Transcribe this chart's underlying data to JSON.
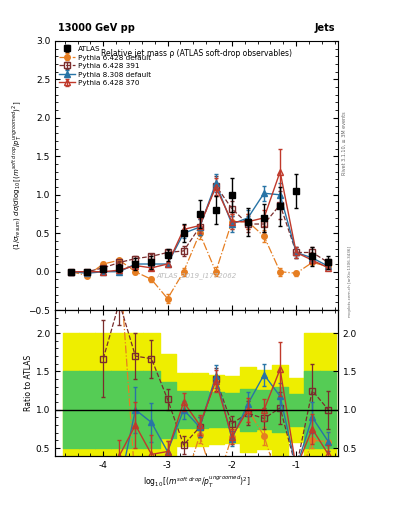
{
  "title_top": "13000 GeV pp",
  "title_right": "Jets",
  "plot_title": "Relative jet mass ρ (ATLAS soft-drop observables)",
  "watermark": "ATLAS_2019_I1772062",
  "right_label_top": "Rivet 3.1.10, ≥ 3M events",
  "right_label_bot": "mcplots.cern.ch [arXiv:1306.3436]",
  "ylabel_ratio": "Ratio to ATLAS",
  "ylim_main": [
    -0.5,
    3.0
  ],
  "ylim_ratio": [
    0.4,
    2.3
  ],
  "xlim": [
    -4.75,
    -0.35
  ],
  "xticks": [
    -4,
    -3,
    -2,
    -1
  ],
  "x_centers": [
    -4.5,
    -4.25,
    -4.0,
    -3.75,
    -3.5,
    -3.25,
    -3.0,
    -2.75,
    -2.5,
    -2.25,
    -2.0,
    -1.75,
    -1.5,
    -1.25,
    -1.0,
    -0.75,
    -0.5
  ],
  "ATLAS_y": [
    0.0,
    0.0,
    0.03,
    0.05,
    0.1,
    0.12,
    0.22,
    0.5,
    0.75,
    0.8,
    1.0,
    0.65,
    0.7,
    0.85,
    1.05,
    0.2,
    0.12
  ],
  "ATLAS_yerr": [
    0.02,
    0.02,
    0.04,
    0.05,
    0.08,
    0.08,
    0.08,
    0.12,
    0.18,
    0.18,
    0.22,
    0.18,
    0.18,
    0.25,
    0.22,
    0.12,
    0.08
  ],
  "p6370_y": [
    0.0,
    0.0,
    0.0,
    0.02,
    0.08,
    0.05,
    0.1,
    0.55,
    0.6,
    1.1,
    0.65,
    0.65,
    0.7,
    1.3,
    0.25,
    0.15,
    0.05
  ],
  "p6370_yerr": [
    0.005,
    0.005,
    0.01,
    0.01,
    0.03,
    0.03,
    0.03,
    0.06,
    0.1,
    0.12,
    0.1,
    0.1,
    0.1,
    0.3,
    0.07,
    0.04,
    0.015
  ],
  "p6391_y": [
    0.0,
    0.0,
    0.05,
    0.12,
    0.17,
    0.2,
    0.25,
    0.27,
    0.58,
    1.12,
    0.82,
    0.62,
    0.62,
    0.87,
    0.25,
    0.25,
    0.12
  ],
  "p6391_yerr": [
    0.005,
    0.005,
    0.015,
    0.015,
    0.03,
    0.03,
    0.03,
    0.06,
    0.1,
    0.12,
    0.1,
    0.1,
    0.1,
    0.18,
    0.07,
    0.07,
    0.03
  ],
  "p6def_y": [
    0.0,
    -0.05,
    0.1,
    0.15,
    0.0,
    -0.1,
    -0.35,
    0.0,
    0.5,
    0.0,
    0.65,
    0.65,
    0.46,
    0.0,
    -0.02,
    0.12,
    0.07
  ],
  "p6def_yerr": [
    0.005,
    0.015,
    0.02,
    0.02,
    0.03,
    0.03,
    0.06,
    0.05,
    0.08,
    0.06,
    0.1,
    0.1,
    0.08,
    0.05,
    0.03,
    0.02,
    0.015
  ],
  "p8def_y": [
    0.0,
    -0.02,
    0.0,
    0.0,
    0.1,
    0.1,
    0.1,
    0.5,
    0.58,
    1.15,
    0.62,
    0.7,
    1.02,
    1.0,
    0.25,
    0.18,
    0.07
  ],
  "p8def_yerr": [
    0.005,
    0.008,
    0.01,
    0.01,
    0.03,
    0.03,
    0.03,
    0.06,
    0.1,
    0.12,
    0.1,
    0.1,
    0.1,
    0.15,
    0.07,
    0.04,
    0.015
  ],
  "color_p6370": "#c0392b",
  "color_p6391": "#7b2d2d",
  "color_p6def": "#e67e22",
  "color_p8def": "#2874a6",
  "color_atlas": "#000000",
  "green_color": "#55cc55",
  "yellow_color": "#eeee00",
  "bin_edges": [
    -4.625,
    -4.375,
    -4.125,
    -3.875,
    -3.625,
    -3.375,
    -3.125,
    -2.875,
    -2.625,
    -2.375,
    -2.125,
    -1.875,
    -1.625,
    -1.375,
    -1.125,
    -0.875,
    -0.625,
    -0.375
  ]
}
